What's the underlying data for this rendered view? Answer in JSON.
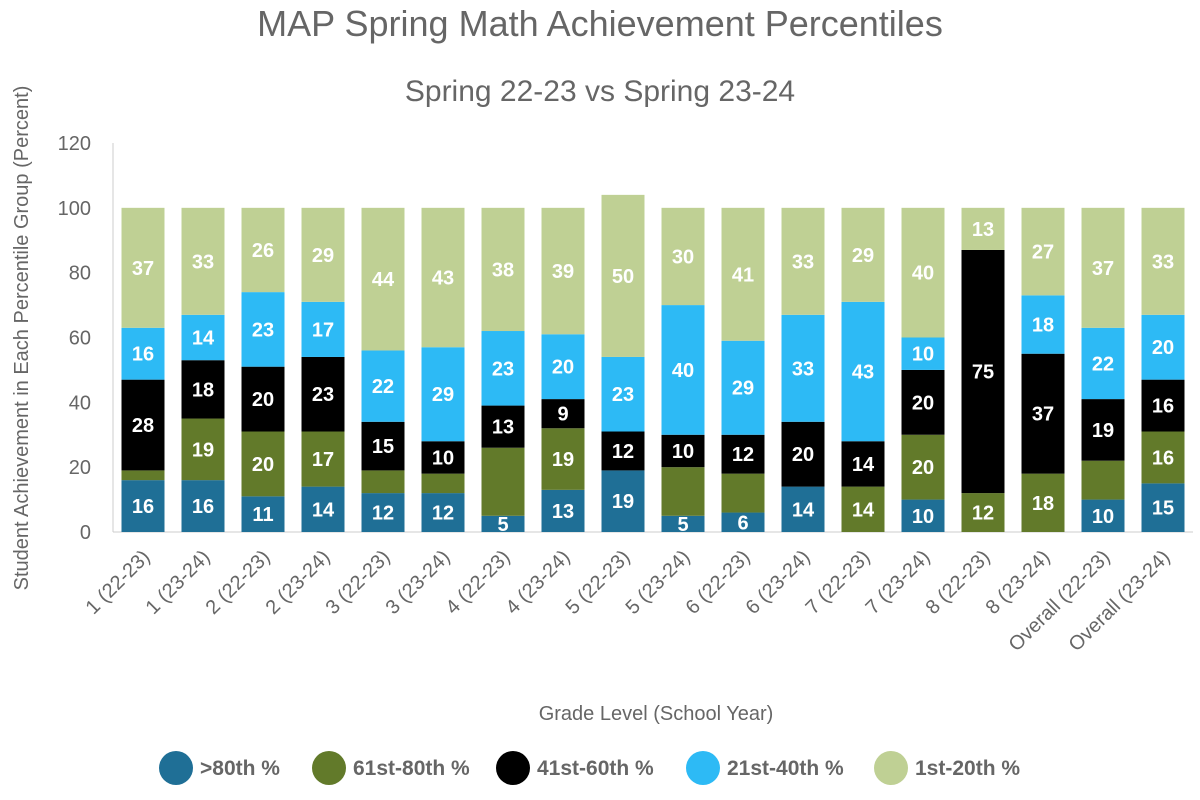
{
  "chart_data": {
    "type": "bar",
    "stacked": true,
    "title": "MAP Spring Math Achievement Percentiles",
    "subtitle": "Spring 22-23 vs Spring 23-24",
    "xlabel": "Grade Level (School Year)",
    "ylabel": "Student Achievement in Each Percentile Group (Percent)",
    "ylim": [
      0,
      120
    ],
    "yticks": [
      0,
      20,
      40,
      60,
      80,
      100,
      120
    ],
    "grid": false,
    "legend_position": "bottom",
    "categories": [
      "1 (22-23)",
      "1 (23-24)",
      "2 (22-23)",
      "2 (23-24)",
      "3 (22-23)",
      "3 (23-24)",
      "4 (22-23)",
      "4 (23-24)",
      "5 (22-23)",
      "5 (23-24)",
      "6 (22-23)",
      "6 (23-24)",
      "7 (22-23)",
      "7 (23-24)",
      "8 (22-23)",
      "8 (23-24)",
      "Overall (22-23)",
      "Overall (23-24)"
    ],
    "series": [
      {
        "name": ">80th %",
        "color": "#1f6f96",
        "values": [
          16,
          16,
          11,
          14,
          12,
          12,
          5,
          13,
          19,
          5,
          6,
          14,
          0,
          10,
          0,
          0,
          10,
          15
        ]
      },
      {
        "name": "61st-80th %",
        "color": "#627a2a",
        "values": [
          3,
          19,
          20,
          17,
          7,
          6,
          21,
          19,
          0,
          15,
          12,
          0,
          14,
          20,
          12,
          18,
          12,
          16
        ]
      },
      {
        "name": "41st-60th %",
        "color": "#000000",
        "values": [
          28,
          18,
          20,
          23,
          15,
          10,
          13,
          9,
          12,
          10,
          12,
          20,
          14,
          20,
          75,
          37,
          19,
          16
        ]
      },
      {
        "name": "21st-40th %",
        "color": "#2dbaf5",
        "values": [
          16,
          14,
          23,
          17,
          22,
          29,
          23,
          20,
          23,
          40,
          29,
          33,
          43,
          10,
          0,
          18,
          22,
          20
        ]
      },
      {
        "name": "1st-20th %",
        "color": "#bfd094",
        "values": [
          37,
          33,
          26,
          29,
          44,
          43,
          38,
          39,
          50,
          30,
          41,
          33,
          29,
          40,
          13,
          27,
          37,
          33
        ]
      }
    ],
    "labels": [
      [
        16,
        16,
        11,
        14,
        12,
        12,
        5,
        13,
        19,
        5,
        6,
        14,
        null,
        10,
        null,
        null,
        10,
        15
      ],
      [
        null,
        19,
        20,
        17,
        null,
        null,
        null,
        19,
        null,
        null,
        null,
        null,
        14,
        20,
        12,
        18,
        null,
        16
      ],
      [
        28,
        18,
        20,
        23,
        15,
        10,
        13,
        9,
        12,
        10,
        12,
        20,
        14,
        20,
        75,
        37,
        19,
        16
      ],
      [
        16,
        14,
        23,
        17,
        22,
        29,
        23,
        20,
        23,
        40,
        29,
        33,
        43,
        10,
        null,
        18,
        22,
        20
      ],
      [
        37,
        33,
        26,
        29,
        44,
        43,
        38,
        39,
        50,
        30,
        41,
        33,
        29,
        40,
        13,
        27,
        37,
        33
      ]
    ]
  }
}
